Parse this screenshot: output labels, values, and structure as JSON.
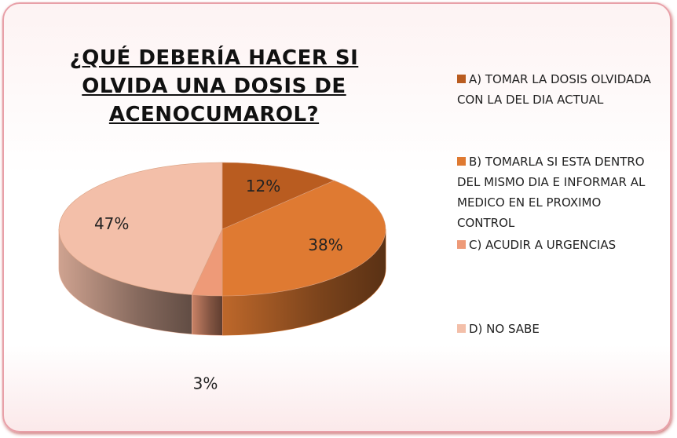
{
  "chart_data": {
    "type": "pie3d",
    "title": "¿QUÉ DEBERÍA HACER SI OLVIDA UNA DOSIS DE ACENOCUMAROL?",
    "categories": [
      "A) TOMAR LA DOSIS OLVIDADA CON LA DEL DIA ACTUAL",
      "B) TOMARLA SI ESTA DENTRO DEL MISMO DIA E INFORMAR AL MEDICO EN EL PROXIMO CONTROL",
      "C) ACUDIR A URGENCIAS",
      "D) NO SABE"
    ],
    "values": [
      12,
      38,
      3,
      47
    ],
    "value_labels": [
      "12%",
      "38%",
      "3%",
      "47%"
    ],
    "colors": [
      "#b95c20",
      "#df7a32",
      "#ee9a78",
      "#f3bfa9"
    ],
    "legend": "right"
  }
}
